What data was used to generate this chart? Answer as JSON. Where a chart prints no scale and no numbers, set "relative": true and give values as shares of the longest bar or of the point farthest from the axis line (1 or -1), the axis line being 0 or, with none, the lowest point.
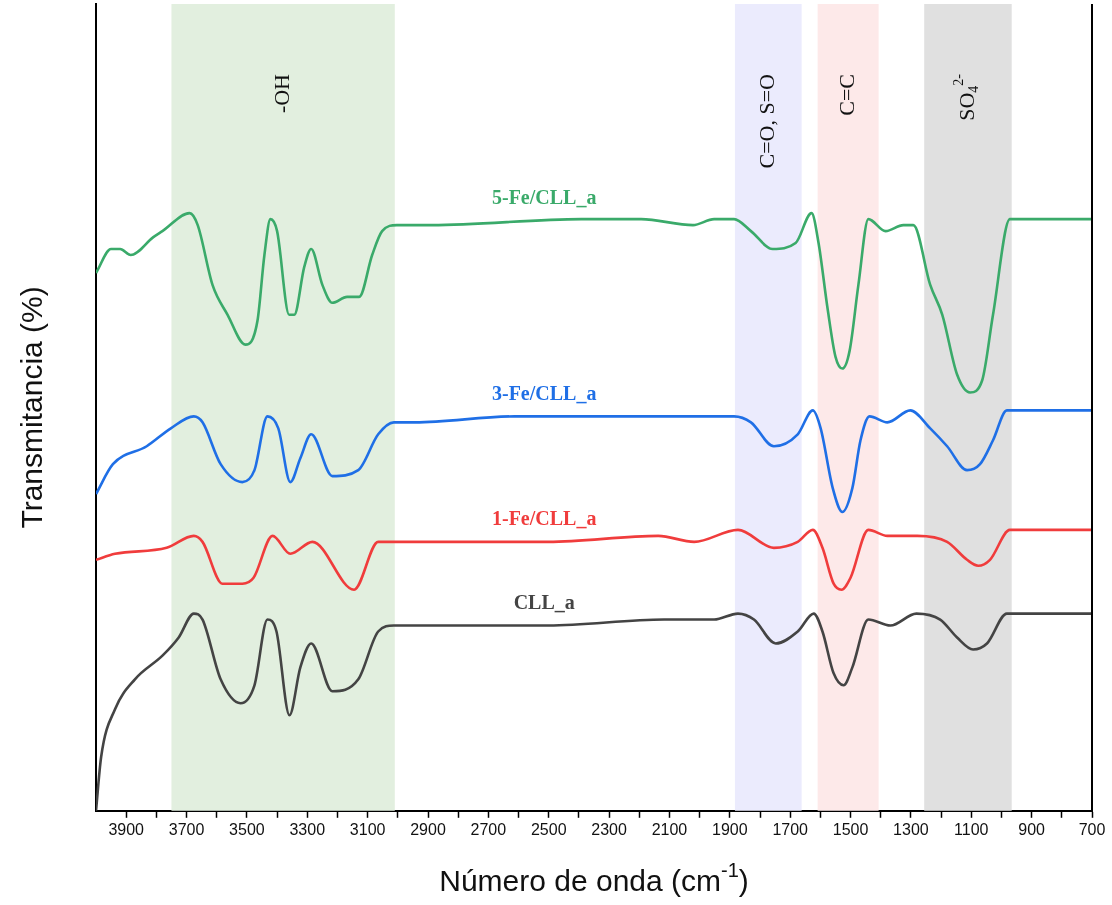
{
  "chart_data": {
    "type": "line",
    "xlabel": "Número de onda (cm$^{-1}$)",
    "ylabel": "Transmitancia (%)",
    "relative": true,
    "xlim": [
      4000,
      700
    ],
    "xticks": [
      3900,
      {
        "value": 3800,
        "label": null
      },
      3700,
      {
        "value": 3600,
        "label": null
      },
      3500,
      {
        "value": 3400,
        "label": null
      },
      3300,
      {
        "value": 3200,
        "label": null
      },
      3100,
      {
        "value": 3000,
        "label": null
      },
      2900,
      {
        "value": 2800,
        "label": null
      },
      2700,
      {
        "value": 2600,
        "label": null
      },
      2500,
      {
        "value": 2400,
        "label": null
      },
      2300,
      {
        "value": 2200,
        "label": null
      },
      2100,
      {
        "value": 2000,
        "label": null
      },
      1900,
      {
        "value": 1800,
        "label": null
      },
      1700,
      {
        "value": 1600,
        "label": null
      },
      1500,
      {
        "value": 1400,
        "label": null
      },
      1300,
      {
        "value": 1200,
        "label": null
      },
      1100,
      {
        "value": 1000,
        "label": null
      },
      900,
      {
        "value": 800,
        "label": null
      },
      700
    ],
    "bands": [
      {
        "axis": "x",
        "from": 3750,
        "to": 3010,
        "label": "-OH",
        "color": "#e2efdf"
      },
      {
        "axis": "x",
        "from": 1883,
        "to": 1662,
        "label": "C=O, S=O",
        "color": "#ebebfd"
      },
      {
        "axis": "x",
        "from": 1609,
        "to": 1407,
        "label": "C=C",
        "color": "#fde9e9"
      },
      {
        "axis": "x",
        "from": 1256,
        "to": 966,
        "label": "SO$_{4}$$^{2-}$",
        "color": "#e0e0e0"
      }
    ],
    "series": [
      {
        "name": "CLL_a",
        "color": "#444444",
        "x": [
          4000,
          3983,
          3937,
          3871,
          3779,
          3726,
          3676,
          3647,
          3587,
          3521,
          3475,
          3432,
          3402,
          3359,
          3323,
          3287,
          3217,
          3131,
          3065,
          3013,
          2910,
          2501,
          2118,
          2018,
          1952,
          1873,
          1820,
          1748,
          1675,
          1622,
          1593,
          1556,
          1523,
          1494,
          1441,
          1368,
          1282,
          1203,
          1147,
          1094,
          1048,
          982,
          700
        ],
        "values": [
          0.0,
          0.09,
          0.17,
          0.22,
          0.26,
          0.29,
          0.33,
          0.32,
          0.22,
          0.18,
          0.21,
          0.32,
          0.3,
          0.16,
          0.24,
          0.28,
          0.2,
          0.22,
          0.3,
          0.31,
          0.31,
          0.31,
          0.32,
          0.32,
          0.32,
          0.33,
          0.32,
          0.28,
          0.3,
          0.33,
          0.3,
          0.23,
          0.21,
          0.24,
          0.32,
          0.31,
          0.33,
          0.32,
          0.29,
          0.27,
          0.28,
          0.33,
          0.33
        ]
      },
      {
        "name": "1-Fe/CLL_a",
        "color": "#f03c3c",
        "x": [
          4000,
          3937,
          3766,
          3676,
          3647,
          3581,
          3515,
          3478,
          3415,
          3356,
          3283,
          3145,
          3065,
          3013,
          2887,
          2501,
          2137,
          2018,
          1873,
          1754,
          1675,
          1625,
          1593,
          1556,
          1530,
          1500,
          1441,
          1378,
          1279,
          1180,
          1114,
          1077,
          1038,
          972,
          700
        ],
        "values": [
          0.42,
          0.43,
          0.44,
          0.46,
          0.45,
          0.38,
          0.38,
          0.39,
          0.46,
          0.43,
          0.45,
          0.37,
          0.45,
          0.45,
          0.45,
          0.45,
          0.46,
          0.45,
          0.47,
          0.44,
          0.45,
          0.47,
          0.44,
          0.38,
          0.37,
          0.39,
          0.47,
          0.46,
          0.46,
          0.45,
          0.42,
          0.41,
          0.42,
          0.47,
          0.47
        ]
      },
      {
        "name": "3-Fe/CLL_a",
        "color": "#1f6fe6",
        "x": [
          4000,
          3944,
          3832,
          3752,
          3676,
          3647,
          3587,
          3515,
          3475,
          3432,
          3396,
          3356,
          3323,
          3287,
          3217,
          3131,
          3065,
          3013,
          2943,
          2613,
          2283,
          2118,
          2022,
          1952,
          1886,
          1830,
          1754,
          1675,
          1625,
          1599,
          1559,
          1527,
          1494,
          1467,
          1437,
          1378,
          1302,
          1236,
          1180,
          1114,
          1071,
          1028,
          982,
          700
        ],
        "values": [
          0.53,
          0.58,
          0.61,
          0.64,
          0.66,
          0.65,
          0.58,
          0.55,
          0.57,
          0.66,
          0.64,
          0.55,
          0.59,
          0.63,
          0.56,
          0.57,
          0.63,
          0.65,
          0.65,
          0.66,
          0.66,
          0.66,
          0.66,
          0.66,
          0.66,
          0.65,
          0.61,
          0.63,
          0.67,
          0.64,
          0.54,
          0.5,
          0.54,
          0.62,
          0.66,
          0.65,
          0.67,
          0.64,
          0.61,
          0.57,
          0.58,
          0.62,
          0.67,
          0.67
        ]
      },
      {
        "name": "5-Fe/CLL_a",
        "color": "#3aaa6a",
        "x": [
          4000,
          3950,
          3920,
          3885,
          3810,
          3780,
          3690,
          3663,
          3614,
          3564,
          3505,
          3465,
          3442,
          3422,
          3400,
          3360,
          3343,
          3310,
          3287,
          3250,
          3217,
          3168,
          3128,
          3085,
          3052,
          3003,
          2887,
          2392,
          2194,
          2022,
          1952,
          1886,
          1830,
          1758,
          1682,
          1629,
          1606,
          1576,
          1550,
          1527,
          1503,
          1474,
          1441,
          1384,
          1325,
          1292,
          1236,
          1196,
          1147,
          1104,
          1064,
          1028,
          972,
          700
        ],
        "values": [
          0.9,
          0.94,
          0.94,
          0.93,
          0.96,
          0.97,
          1.0,
          0.98,
          0.88,
          0.83,
          0.78,
          0.82,
          0.93,
          0.99,
          0.97,
          0.83,
          0.83,
          0.91,
          0.94,
          0.88,
          0.85,
          0.86,
          0.86,
          0.93,
          0.97,
          0.98,
          0.98,
          0.99,
          0.99,
          0.98,
          0.99,
          0.99,
          0.97,
          0.94,
          0.95,
          1.0,
          0.95,
          0.84,
          0.76,
          0.74,
          0.77,
          0.88,
          0.99,
          0.97,
          0.98,
          0.98,
          0.88,
          0.83,
          0.73,
          0.7,
          0.72,
          0.83,
          0.99,
          0.99
        ]
      }
    ]
  }
}
